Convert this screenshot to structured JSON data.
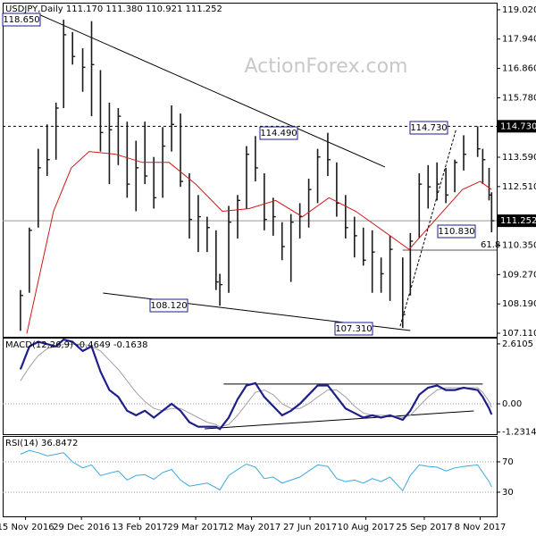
{
  "chart_data": [
    {
      "type": "ohlc",
      "title": "USDJPY,Daily 111.170 111.380 110.921 111.252",
      "watermark": "ActionForex.com",
      "xlim": [
        "2016-10-28",
        "2017-11-21"
      ],
      "x": [
        "2016-11-11",
        "2016-11-18",
        "2016-11-25",
        "2016-12-02",
        "2016-12-09",
        "2016-12-15",
        "2016-12-22",
        "2016-12-30",
        "2017-01-06",
        "2017-01-13",
        "2017-01-20",
        "2017-01-27",
        "2017-02-03",
        "2017-02-10",
        "2017-02-17",
        "2017-02-24",
        "2017-03-03",
        "2017-03-10",
        "2017-03-17",
        "2017-03-24",
        "2017-03-31",
        "2017-04-07",
        "2017-04-14",
        "2017-04-17",
        "2017-04-24",
        "2017-05-01",
        "2017-05-08",
        "2017-05-15",
        "2017-05-22",
        "2017-05-29",
        "2017-06-05",
        "2017-06-12",
        "2017-06-19",
        "2017-06-26",
        "2017-07-03",
        "2017-07-11",
        "2017-07-18",
        "2017-07-25",
        "2017-08-01",
        "2017-08-08",
        "2017-08-15",
        "2017-08-22",
        "2017-08-29",
        "2017-09-08",
        "2017-09-14",
        "2017-09-21",
        "2017-09-28",
        "2017-10-05",
        "2017-10-12",
        "2017-10-19",
        "2017-10-26",
        "2017-11-06",
        "2017-11-10",
        "2017-11-15",
        "2017-11-17"
      ],
      "high": [
        108.7,
        111.0,
        113.9,
        114.8,
        115.6,
        118.65,
        118.2,
        117.6,
        118.6,
        116.8,
        115.6,
        115.4,
        114.9,
        114.2,
        114.9,
        113.6,
        114.7,
        115.5,
        115.2,
        113.0,
        112.2,
        111.4,
        110.9,
        109.3,
        111.8,
        112.2,
        114.0,
        114.37,
        113.0,
        112.1,
        111.2,
        111.5,
        111.9,
        112.8,
        113.9,
        114.49,
        113.4,
        112.2,
        111.4,
        111.0,
        110.9,
        109.9,
        110.7,
        109.9,
        110.8,
        113.0,
        113.3,
        113.4,
        113.2,
        113.5,
        114.4,
        114.73,
        113.9,
        113.2,
        112.3
      ],
      "low": [
        107.2,
        108.6,
        111.0,
        112.9,
        113.5,
        115.4,
        117.0,
        116.0,
        115.1,
        113.8,
        112.6,
        113.3,
        112.1,
        111.6,
        112.6,
        111.7,
        112.1,
        113.8,
        112.5,
        110.6,
        110.1,
        110.1,
        108.7,
        108.12,
        108.6,
        110.6,
        111.7,
        112.7,
        110.9,
        110.7,
        109.8,
        109.0,
        110.6,
        111.0,
        111.9,
        112.9,
        111.4,
        110.6,
        109.9,
        109.6,
        108.6,
        108.6,
        108.3,
        107.31,
        108.5,
        110.6,
        111.7,
        112.0,
        111.9,
        112.3,
        113.1,
        113.6,
        112.6,
        112.0,
        110.83
      ],
      "close": [
        108.5,
        110.9,
        113.2,
        113.5,
        115.4,
        118.1,
        117.3,
        116.9,
        117.0,
        114.5,
        114.6,
        115.1,
        112.6,
        113.2,
        112.9,
        112.1,
        114.0,
        114.8,
        112.7,
        111.3,
        111.4,
        111.0,
        109.0,
        108.9,
        111.2,
        112.0,
        113.7,
        113.2,
        111.3,
        111.4,
        110.3,
        111.2,
        111.4,
        112.4,
        113.6,
        113.5,
        111.9,
        111.0,
        110.7,
        109.8,
        110.1,
        109.3,
        110.2,
        107.8,
        110.5,
        112.6,
        112.5,
        112.6,
        112.2,
        113.4,
        113.7,
        113.9,
        113.5,
        112.2,
        111.252
      ],
      "bar_color": "#1a1a1a",
      "ma": {
        "color": "#d01818",
        "x": [
          "2016-11-16",
          "2016-12-07",
          "2016-12-21",
          "2017-01-04",
          "2017-01-25",
          "2017-02-15",
          "2017-03-08",
          "2017-03-29",
          "2017-04-19",
          "2017-05-10",
          "2017-05-31",
          "2017-06-21",
          "2017-07-12",
          "2017-08-02",
          "2017-08-23",
          "2017-09-13",
          "2017-10-04",
          "2017-10-25",
          "2017-11-08",
          "2017-11-17"
        ],
        "values": [
          107.1,
          111.6,
          113.2,
          113.8,
          113.7,
          113.4,
          113.4,
          112.6,
          111.6,
          111.7,
          112.0,
          111.4,
          112.1,
          111.6,
          110.9,
          110.2,
          111.3,
          112.4,
          112.7,
          112.4
        ]
      },
      "ylim": [
        106.98,
        119.28
      ],
      "yticks": [
        {
          "value": 119.02,
          "label": "119.020"
        },
        {
          "value": 117.94,
          "label": "117.940"
        },
        {
          "value": 116.86,
          "label": "116.860"
        },
        {
          "value": 115.78,
          "label": "115.780"
        },
        {
          "value": 113.59,
          "label": "113.590"
        },
        {
          "value": 112.51,
          "label": "112.510"
        },
        {
          "value": 110.35,
          "label": "110.350"
        },
        {
          "value": 109.27,
          "label": "109.270"
        },
        {
          "value": 108.19,
          "label": "108.190"
        },
        {
          "value": 107.11,
          "label": "107.110"
        }
      ],
      "xticks": [
        {
          "value": "2016-11-15",
          "label": "15 Nov 2016"
        },
        {
          "value": "2016-12-29",
          "label": "29 Dec 2016"
        },
        {
          "value": "2017-02-13",
          "label": "13 Feb 2017"
        },
        {
          "value": "2017-03-29",
          "label": "29 Mar 2017"
        },
        {
          "value": "2017-05-12",
          "label": "12 May 2017"
        },
        {
          "value": "2017-06-27",
          "label": "27 Jun 2017"
        },
        {
          "value": "2017-08-10",
          "label": "10 Aug 2017"
        },
        {
          "value": "2017-09-25",
          "label": "25 Sep 2017"
        },
        {
          "value": "2017-11-08",
          "label": "8 Nov 2017"
        }
      ],
      "price_markers": [
        {
          "value": 114.73,
          "label": "114.730",
          "line_style": "dashed"
        },
        {
          "value": 111.252,
          "label": "111.252",
          "line_style": "solid"
        }
      ],
      "annotations": [
        "118.650",
        "114.490",
        "114.730",
        "108.120",
        "107.310",
        "110.830"
      ],
      "fib": {
        "label": "61.8",
        "value": 110.17,
        "start": "2017-09-08"
      },
      "trendlines": [
        {
          "x": [
            "2016-11-23",
            "2017-08-25"
          ],
          "y": [
            118.9,
            113.23
          ],
          "dashed": false
        },
        {
          "x": [
            "2017-01-15",
            "2017-09-14"
          ],
          "y": [
            108.59,
            107.21
          ],
          "dashed": false
        },
        {
          "x": [
            "2017-09-06",
            "2017-10-20"
          ],
          "y": [
            107.37,
            114.61
          ],
          "dashed": true
        }
      ]
    },
    {
      "type": "macd",
      "title": "MACD(12,26,9) -0.4649 -0.1638",
      "series": [
        {
          "color": "#1e1e8c",
          "values": [
            1.5,
            2.5,
            2.7,
            2.6,
            2.5,
            2.8,
            2.7,
            2.3,
            2.5,
            1.4,
            0.6,
            0.3,
            -0.3,
            -0.5,
            -0.3,
            -0.6,
            -0.3,
            0.0,
            -0.3,
            -0.8,
            -1.0,
            -1.0,
            -1.0,
            -1.1,
            -0.6,
            0.2,
            0.8,
            0.9,
            0.3,
            -0.1,
            -0.5,
            -0.3,
            0.0,
            0.4,
            0.8,
            0.8,
            0.3,
            -0.2,
            -0.4,
            -0.6,
            -0.5,
            -0.6,
            -0.5,
            -0.7,
            -0.3,
            0.4,
            0.7,
            0.8,
            0.6,
            0.6,
            0.7,
            0.6,
            0.3,
            -0.2,
            -0.4649
          ]
        },
        {
          "color": "#a0a0a0",
          "values": [
            1.0,
            1.6,
            2.1,
            2.4,
            2.5,
            2.6,
            2.6,
            2.6,
            2.5,
            2.3,
            1.9,
            1.5,
            1.0,
            0.5,
            0.1,
            -0.2,
            -0.3,
            -0.2,
            -0.2,
            -0.4,
            -0.6,
            -0.8,
            -0.9,
            -1.0,
            -0.9,
            -0.5,
            0.0,
            0.5,
            0.6,
            0.4,
            0.0,
            -0.2,
            -0.2,
            0.0,
            0.3,
            0.6,
            0.6,
            0.3,
            -0.1,
            -0.4,
            -0.5,
            -0.5,
            -0.5,
            -0.6,
            -0.5,
            -0.1,
            0.3,
            0.6,
            0.7,
            0.7,
            0.7,
            0.7,
            0.5,
            0.1,
            -0.1638
          ]
        }
      ],
      "ylim": [
        -1.36,
        2.88
      ],
      "yticks": [
        2.6105,
        {
          "value": 0,
          "label": "0.00"
        },
        -1.2314
      ],
      "zero_line": true,
      "trendlines": [
        {
          "x": [
            "2017-04-20",
            "2017-11-10"
          ],
          "y": [
            0.86,
            0.86
          ],
          "dashed": false
        },
        {
          "x": [
            "2017-04-05",
            "2017-11-03"
          ],
          "y": [
            -1.09,
            -0.31
          ],
          "dashed": false
        }
      ]
    },
    {
      "type": "rsi",
      "title": "RSI(14) 36.8472",
      "series": [
        {
          "color": "#3aa8e0",
          "values": [
            80,
            85,
            82,
            78,
            80,
            82,
            70,
            62,
            66,
            52,
            55,
            58,
            46,
            52,
            53,
            47,
            56,
            60,
            46,
            38,
            40,
            42,
            36,
            33,
            52,
            60,
            67,
            63,
            48,
            50,
            42,
            46,
            50,
            58,
            66,
            64,
            48,
            44,
            46,
            42,
            48,
            44,
            50,
            32,
            52,
            66,
            64,
            63,
            58,
            62,
            64,
            66,
            56,
            44,
            36.8472
          ]
        }
      ],
      "ylim": [
        -1.8,
        104.1
      ],
      "yticks": [
        70,
        30
      ],
      "grid": true
    }
  ]
}
